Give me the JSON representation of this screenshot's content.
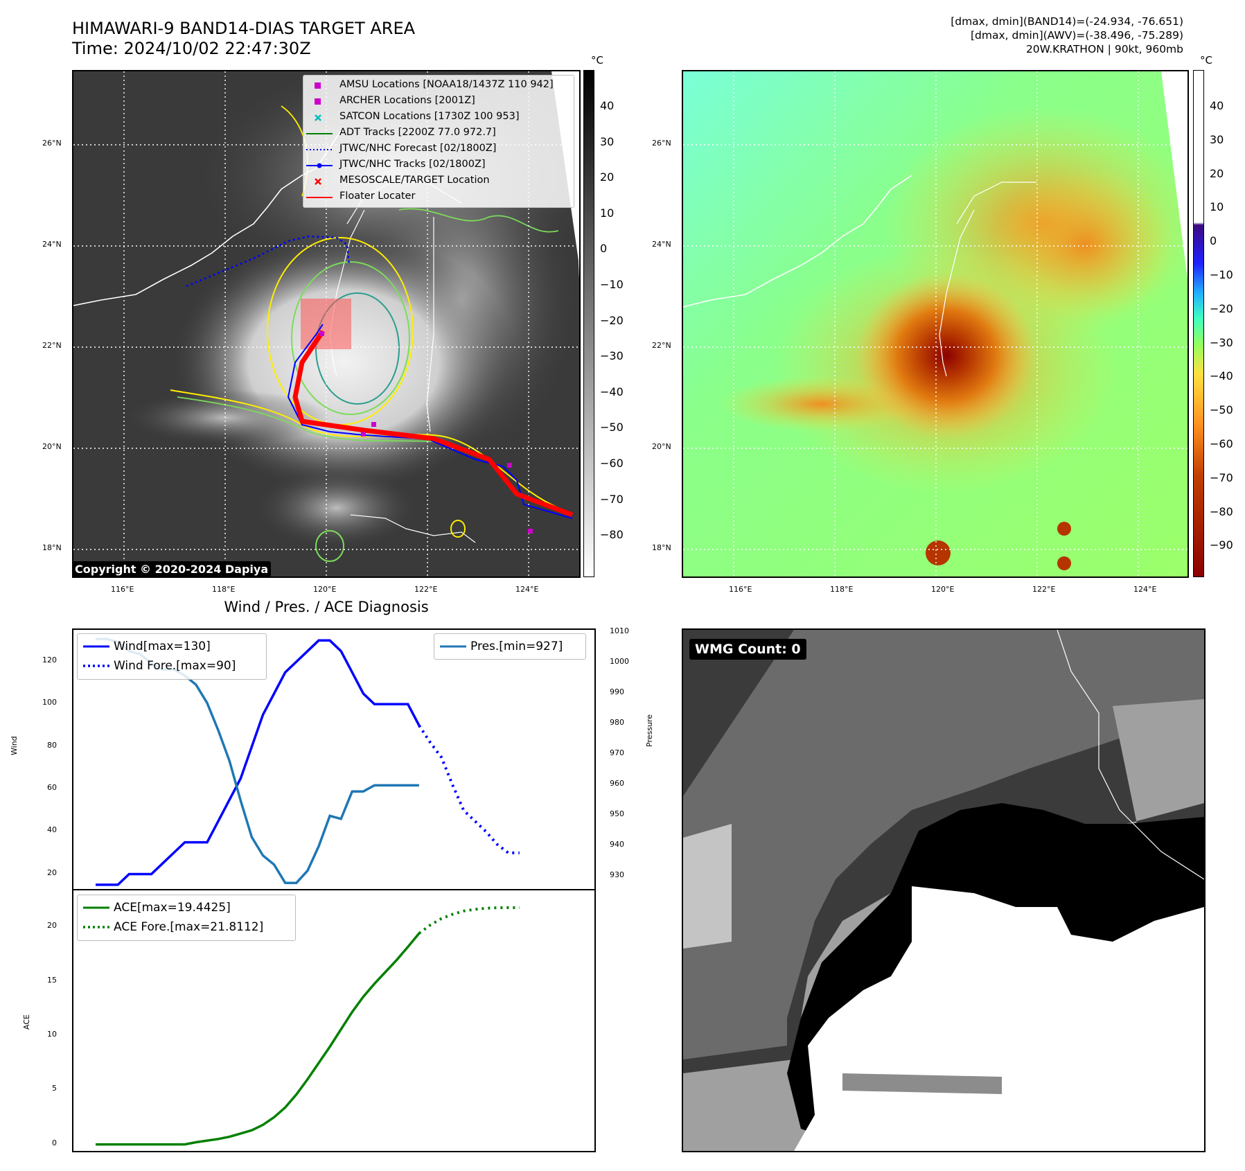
{
  "header": {
    "title_line1": "HIMAWARI-9 BAND14-DIAS TARGET AREA",
    "title_line2": "Time: 2024/10/02 22:47:30Z",
    "info_line1": "[dmax, dmin](BAND14)=(-24.934, -76.651)",
    "info_line2": "[dmax, dmin](AWV)=(-38.496, -75.289)",
    "info_line3": "20W.KRATHON | 90kt, 960mb"
  },
  "map_axes": {
    "lon_labels": [
      "116°E",
      "118°E",
      "120°E",
      "122°E",
      "124°E"
    ],
    "lat_labels": [
      "26°N",
      "24°N",
      "22°N",
      "20°N",
      "18°N"
    ]
  },
  "colorbar_left": {
    "unit": "°C",
    "ticks": [
      "40",
      "30",
      "20",
      "10",
      "0",
      "−10",
      "−20",
      "−30",
      "−40",
      "−50",
      "−60",
      "−70",
      "−80"
    ]
  },
  "colorbar_right": {
    "unit": "°C",
    "ticks": [
      "40",
      "30",
      "20",
      "10",
      "0",
      "−10",
      "−20",
      "−30",
      "−40",
      "−50",
      "−60",
      "−70",
      "−80",
      "−90"
    ]
  },
  "legend": {
    "items": [
      {
        "label": "AMSU Locations [NOAA18/1437Z 110 942]",
        "color": "#cc00cc",
        "marker": "square"
      },
      {
        "label": "ARCHER Locations [2001Z]",
        "color": "#cc00cc",
        "marker": "square"
      },
      {
        "label": "SATCON Locations [1730Z 100 953]",
        "color": "#00bbbb",
        "marker": "x"
      },
      {
        "label": "ADT Tracks [2200Z 77.0 972.7]",
        "color": "#008000",
        "marker": "line"
      },
      {
        "label": "JTWC/NHC Forecast [02/1800Z]",
        "color": "#0000ff",
        "marker": "dotted"
      },
      {
        "label": "JTWC/NHC Tracks [02/1800Z]",
        "color": "#0000ff",
        "marker": "line-dot"
      },
      {
        "label": "MESOSCALE/TARGET Location",
        "color": "#ff0000",
        "marker": "x"
      },
      {
        "label": "Floater Locater",
        "color": "#ff0000",
        "marker": "line"
      }
    ]
  },
  "copyright": "Copyright © 2020-2024 Dapiya",
  "wmg_label": "WMG Count: 0",
  "chart_data": [
    {
      "type": "line",
      "title": "Wind / Pres. / ACE Diagnosis",
      "ylabel": "Wind",
      "y2label": "Pressure",
      "ylim": [
        13,
        135
      ],
      "y2lim": [
        926,
        1011
      ],
      "y_ticks": [
        "120",
        "100",
        "80",
        "60",
        "40",
        "20"
      ],
      "y2_ticks": [
        "1010",
        "1000",
        "990",
        "980",
        "970",
        "960",
        "950",
        "940",
        "930"
      ],
      "series": [
        {
          "name": "Wind[max=130]",
          "color": "#0000ff",
          "style": "solid",
          "x": [
            0,
            1,
            2,
            3,
            4,
            5,
            6,
            7,
            8,
            9,
            10,
            11,
            12,
            13,
            14,
            15,
            16,
            17,
            18,
            19
          ],
          "values": [
            15,
            15,
            15,
            20,
            20,
            20,
            25,
            30,
            35,
            35,
            35,
            45,
            55,
            65,
            80,
            95,
            105,
            115,
            120,
            125
          ]
        },
        {
          "name": "Wind Fore.[max=90]",
          "color": "#0000ff",
          "style": "dotted",
          "x": [
            29,
            30,
            31,
            32,
            33,
            34,
            35,
            36,
            37,
            38
          ],
          "values": [
            90,
            82,
            75,
            62,
            50,
            45,
            40,
            34,
            30,
            30
          ]
        },
        {
          "name": "Pres.[min=927]",
          "color": "#1f77b4",
          "style": "solid",
          "axis": "right",
          "x": [
            0,
            1,
            2,
            3,
            4,
            5,
            6,
            7,
            8,
            9,
            10,
            11,
            12,
            13,
            14,
            15,
            16,
            17,
            18,
            19,
            20,
            21,
            22,
            23,
            24,
            25,
            26,
            27,
            28,
            29
          ],
          "values": [
            1008,
            1008,
            1007,
            1004,
            1003,
            1000,
            998,
            998,
            996,
            993,
            987,
            978,
            968,
            955,
            943,
            937,
            934,
            928,
            928,
            932,
            940,
            950,
            949,
            958,
            958,
            960,
            960,
            960,
            960,
            960
          ]
        }
      ],
      "wind_tail": {
        "x": [
          20,
          21,
          22,
          23,
          24,
          25,
          26,
          27,
          28,
          29
        ],
        "values": [
          130,
          130,
          125,
          115,
          105,
          100,
          100,
          100,
          100,
          90
        ]
      }
    },
    {
      "type": "line",
      "ylabel": "ACE",
      "ylim": [
        -0.6,
        23.4
      ],
      "y_ticks": [
        "20",
        "15",
        "10",
        "5",
        "0"
      ],
      "series": [
        {
          "name": "ACE[max=19.4425]",
          "color": "#008000",
          "style": "solid",
          "x": [
            0,
            1,
            2,
            3,
            4,
            5,
            6,
            7,
            8,
            9,
            10,
            11,
            12,
            13,
            14,
            15,
            16,
            17,
            18,
            19,
            20,
            21,
            22,
            23,
            24,
            25,
            26,
            27,
            28,
            29
          ],
          "values": [
            0,
            0,
            0,
            0,
            0,
            0,
            0,
            0,
            0,
            0.2,
            0.35,
            0.5,
            0.7,
            1.0,
            1.3,
            1.8,
            2.5,
            3.4,
            4.6,
            6.0,
            7.5,
            9.0,
            10.6,
            12.2,
            13.6,
            14.8,
            15.9,
            17.0,
            18.2,
            19.44
          ]
        },
        {
          "name": "ACE Fore.[max=21.8112]",
          "color": "#008000",
          "style": "dotted",
          "x": [
            29,
            30,
            31,
            32,
            33,
            34,
            35,
            36,
            37,
            38
          ],
          "values": [
            19.44,
            20.2,
            20.8,
            21.2,
            21.5,
            21.65,
            21.75,
            21.8,
            21.81,
            21.81
          ]
        }
      ]
    }
  ]
}
